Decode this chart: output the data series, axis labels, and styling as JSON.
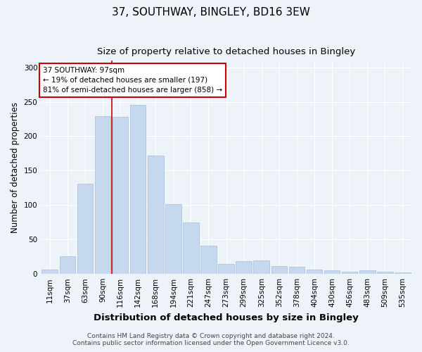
{
  "title_line1": "37, SOUTHWAY, BINGLEY, BD16 3EW",
  "title_line2": "Size of property relative to detached houses in Bingley",
  "xlabel": "Distribution of detached houses by size in Bingley",
  "ylabel": "Number of detached properties",
  "categories": [
    "11sqm",
    "37sqm",
    "63sqm",
    "90sqm",
    "116sqm",
    "142sqm",
    "168sqm",
    "194sqm",
    "221sqm",
    "247sqm",
    "273sqm",
    "299sqm",
    "325sqm",
    "352sqm",
    "378sqm",
    "404sqm",
    "430sqm",
    "456sqm",
    "483sqm",
    "509sqm",
    "535sqm"
  ],
  "values": [
    6,
    26,
    131,
    229,
    228,
    245,
    172,
    101,
    75,
    41,
    14,
    19,
    20,
    11,
    10,
    6,
    5,
    3,
    5,
    3,
    2
  ],
  "bar_color": "#c5d8ed",
  "bar_edge_color": "#a0bfd8",
  "vline_x_index": 3,
  "vline_color": "#cc0000",
  "annotation_text": "37 SOUTHWAY: 97sqm\n← 19% of detached houses are smaller (197)\n81% of semi-detached houses are larger (858) →",
  "annotation_box_facecolor": "#ffffff",
  "annotation_box_edgecolor": "#cc0000",
  "ylim": [
    0,
    310
  ],
  "yticks": [
    0,
    50,
    100,
    150,
    200,
    250,
    300
  ],
  "footer_line1": "Contains HM Land Registry data © Crown copyright and database right 2024.",
  "footer_line2": "Contains public sector information licensed under the Open Government Licence v3.0.",
  "background_color": "#eef2f9",
  "grid_color": "#ffffff",
  "title_fontsize": 11,
  "subtitle_fontsize": 9.5,
  "xlabel_fontsize": 9.5,
  "ylabel_fontsize": 8.5,
  "tick_fontsize": 7.5,
  "annotation_fontsize": 7.5,
  "footer_fontsize": 6.5
}
